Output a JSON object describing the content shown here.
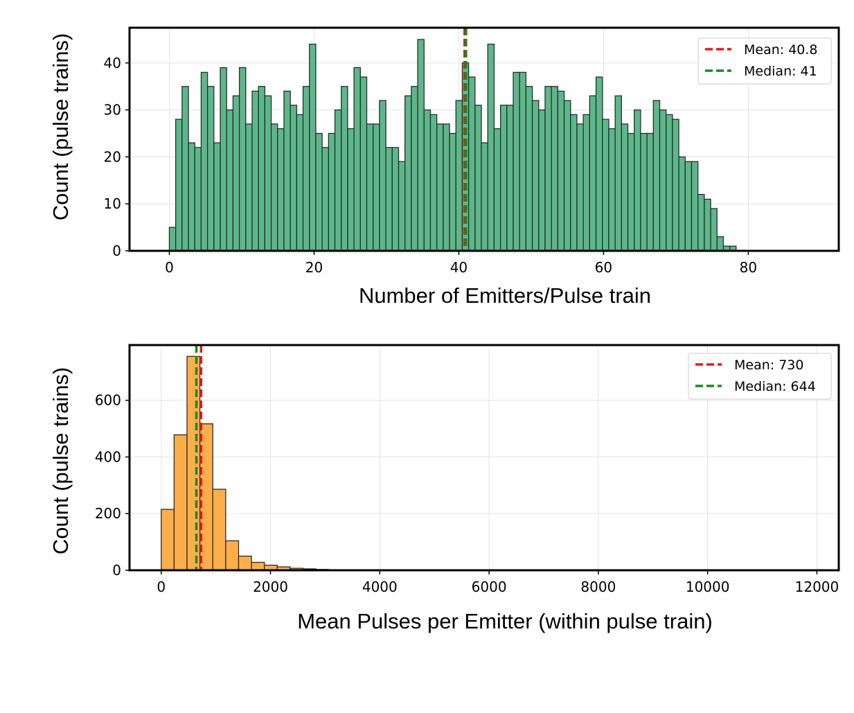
{
  "chart_data": [
    {
      "type": "bar",
      "title": "",
      "xlabel": "Number of Emitters/Pulse train",
      "ylabel": "Count (pulse trains)",
      "xlim": [
        -5.5,
        92.5
      ],
      "ylim": [
        0,
        47.5
      ],
      "xticks": [
        0,
        20,
        40,
        60,
        80
      ],
      "yticks": [
        0,
        10,
        20,
        30,
        40
      ],
      "grid": true,
      "legend_position": "top-right",
      "bar_color": "#5cb88a",
      "bin_start": 0,
      "bin_width": 0.88,
      "values": [
        5,
        28,
        35,
        23,
        22,
        38,
        35,
        23,
        39,
        30,
        33,
        39,
        27,
        34,
        35,
        33,
        27,
        26,
        34,
        31,
        29,
        35,
        44,
        25,
        22,
        25,
        30,
        35,
        26,
        39,
        37,
        27,
        27,
        32,
        22,
        22,
        19,
        33,
        35,
        45,
        30,
        29,
        27,
        27,
        25,
        32,
        40,
        37,
        31,
        23,
        44,
        26,
        31,
        31,
        38,
        38,
        35,
        32,
        30,
        35,
        35,
        34,
        32,
        29,
        27,
        29,
        33,
        37,
        28,
        26,
        33,
        27,
        25,
        30,
        25,
        25,
        32,
        30,
        29,
        28,
        20,
        19,
        19,
        12,
        11,
        9,
        3,
        1,
        1
      ],
      "mean_line": {
        "label": "Mean: 40.8",
        "value": 40.8,
        "color": "#e41a1c"
      },
      "median_line": {
        "label": "Median: 41",
        "value": 41,
        "color": "#1a8a1a"
      }
    },
    {
      "type": "bar",
      "title": "",
      "xlabel": "Mean Pulses per Emitter (within pulse train)",
      "ylabel": "Count (pulse trains)",
      "xlim": [
        -580,
        12400
      ],
      "ylim": [
        0,
        795
      ],
      "xticks": [
        0,
        2000,
        4000,
        6000,
        8000,
        10000,
        12000
      ],
      "yticks": [
        0,
        200,
        400,
        600
      ],
      "grid": true,
      "legend_position": "top-right",
      "bar_color": "#fdae4b",
      "bin_start": 0,
      "bin_width": 236,
      "values": [
        215,
        478,
        755,
        517,
        286,
        104,
        50,
        28,
        18,
        12,
        7,
        5,
        3,
        1,
        0,
        0,
        0,
        0,
        0,
        0,
        0,
        0,
        0,
        0,
        0,
        0,
        0,
        0,
        0,
        0,
        0,
        0,
        0,
        0,
        0,
        0,
        0,
        0,
        0,
        0,
        0,
        0,
        0,
        0,
        0,
        0,
        0,
        0,
        0,
        1
      ],
      "mean_line": {
        "label": "Mean: 730",
        "value": 730,
        "color": "#e41a1c"
      },
      "median_line": {
        "label": "Median: 644",
        "value": 644,
        "color": "#1a8a1a"
      }
    }
  ]
}
